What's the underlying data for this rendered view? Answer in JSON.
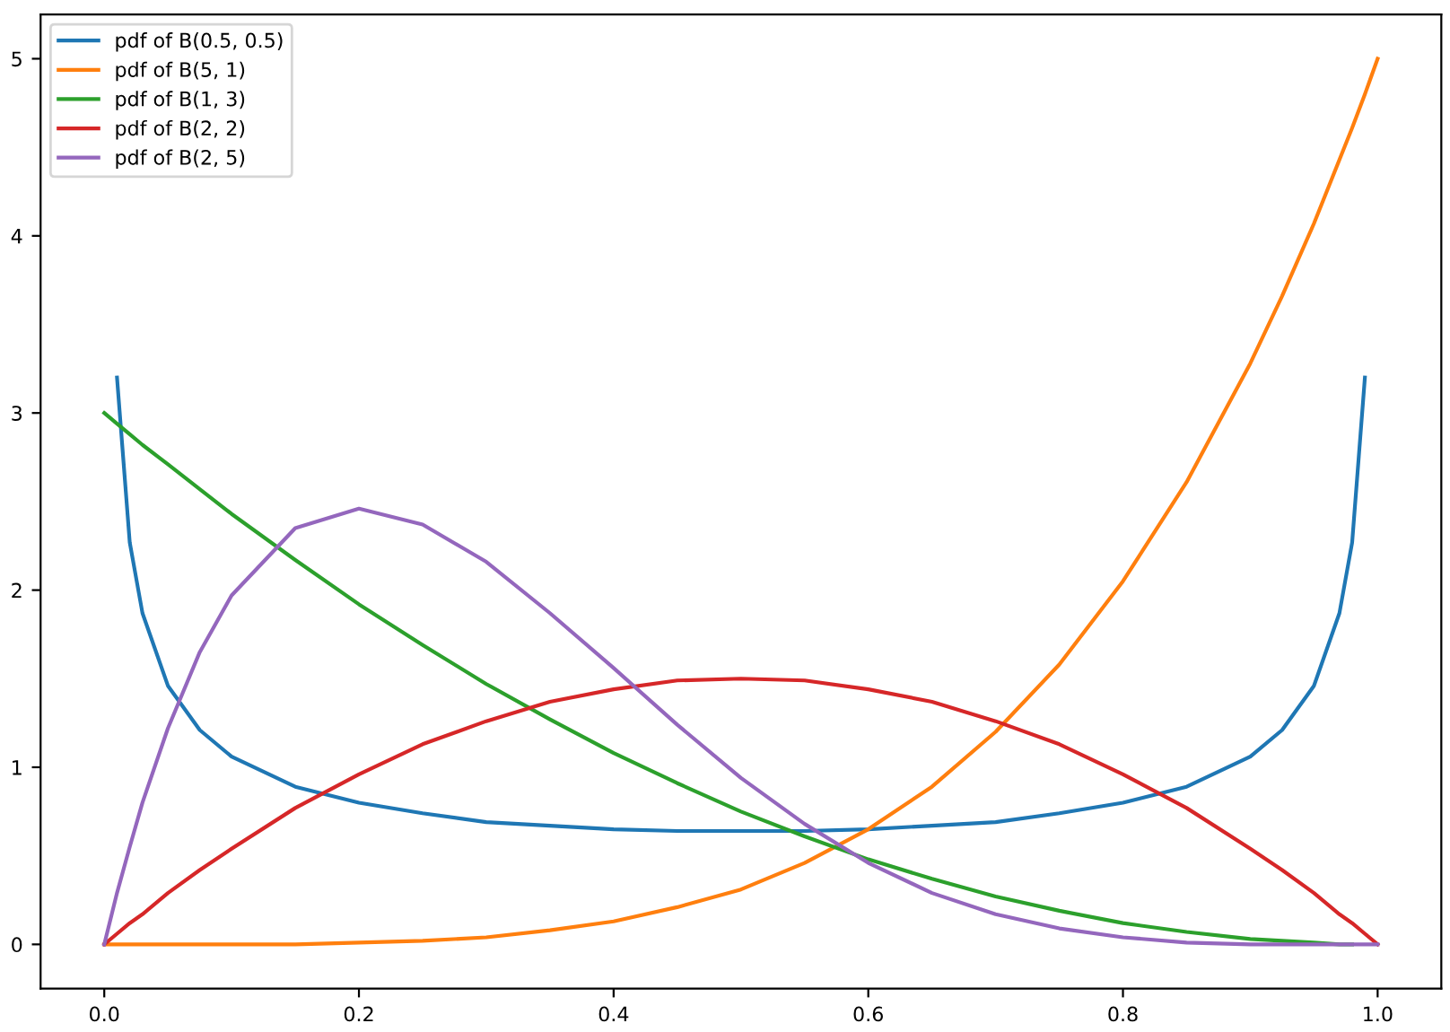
{
  "chart_data": {
    "type": "line",
    "x": [
      0,
      0.01,
      0.02,
      0.03,
      0.05,
      0.075,
      0.1,
      0.15,
      0.2,
      0.25,
      0.3,
      0.35,
      0.4,
      0.45,
      0.5,
      0.55,
      0.6,
      0.65,
      0.7,
      0.75,
      0.8,
      0.85,
      0.9,
      0.925,
      0.95,
      0.97,
      0.98,
      0.99,
      1
    ],
    "series": [
      {
        "name": "pdf of B(0.5, 0.5)",
        "color": "#1f77b4",
        "values": [
          null,
          3.2,
          2.27,
          1.87,
          1.46,
          1.21,
          1.06,
          0.89,
          0.8,
          0.74,
          0.69,
          0.67,
          0.65,
          0.64,
          0.64,
          0.64,
          0.65,
          0.67,
          0.69,
          0.74,
          0.8,
          0.89,
          1.06,
          1.21,
          1.46,
          1.87,
          2.27,
          3.2,
          null
        ]
      },
      {
        "name": "pdf of B(5, 1)",
        "color": "#ff7f0e",
        "values": [
          0,
          0,
          0,
          0,
          0,
          0,
          0,
          0,
          0.01,
          0.02,
          0.04,
          0.08,
          0.13,
          0.21,
          0.31,
          0.46,
          0.65,
          0.89,
          1.2,
          1.58,
          2.05,
          2.61,
          3.28,
          3.66,
          4.07,
          4.43,
          4.61,
          4.8,
          5
        ]
      },
      {
        "name": "pdf of B(1, 3)",
        "color": "#2ca02c",
        "values": [
          3,
          2.94,
          2.88,
          2.82,
          2.71,
          2.57,
          2.43,
          2.17,
          1.92,
          1.69,
          1.47,
          1.27,
          1.08,
          0.91,
          0.75,
          0.61,
          0.48,
          0.37,
          0.27,
          0.19,
          0.12,
          0.07,
          0.03,
          0.02,
          0.01,
          0,
          0,
          null,
          null
        ]
      },
      {
        "name": "pdf of B(2, 2)",
        "color": "#d62728",
        "values": [
          0,
          0.06,
          0.12,
          0.17,
          0.29,
          0.42,
          0.54,
          0.77,
          0.96,
          1.13,
          1.26,
          1.37,
          1.44,
          1.49,
          1.5,
          1.49,
          1.44,
          1.37,
          1.26,
          1.13,
          0.96,
          0.77,
          0.54,
          0.42,
          0.29,
          0.17,
          0.12,
          0.06,
          0
        ]
      },
      {
        "name": "pdf of B(2, 5)",
        "color": "#9467bd",
        "values": [
          0,
          0.29,
          0.55,
          0.8,
          1.22,
          1.65,
          1.97,
          2.35,
          2.46,
          2.37,
          2.16,
          1.87,
          1.56,
          1.24,
          0.94,
          0.68,
          0.46,
          0.29,
          0.17,
          0.09,
          0.04,
          0.01,
          0,
          0,
          0,
          0,
          0,
          0,
          0
        ]
      }
    ],
    "xlim": [
      -0.05,
      1.05
    ],
    "ylim": [
      -0.25,
      5.25
    ],
    "xticks": [
      {
        "value": 0,
        "label": "0.0"
      },
      0.2,
      0.4,
      0.6,
      0.8,
      {
        "value": 1,
        "label": "1.0"
      }
    ],
    "yticks": [
      0,
      1,
      2,
      3,
      4,
      5
    ],
    "grid": false,
    "legend": "top left",
    "marker": "none",
    "line_style": "solid"
  }
}
